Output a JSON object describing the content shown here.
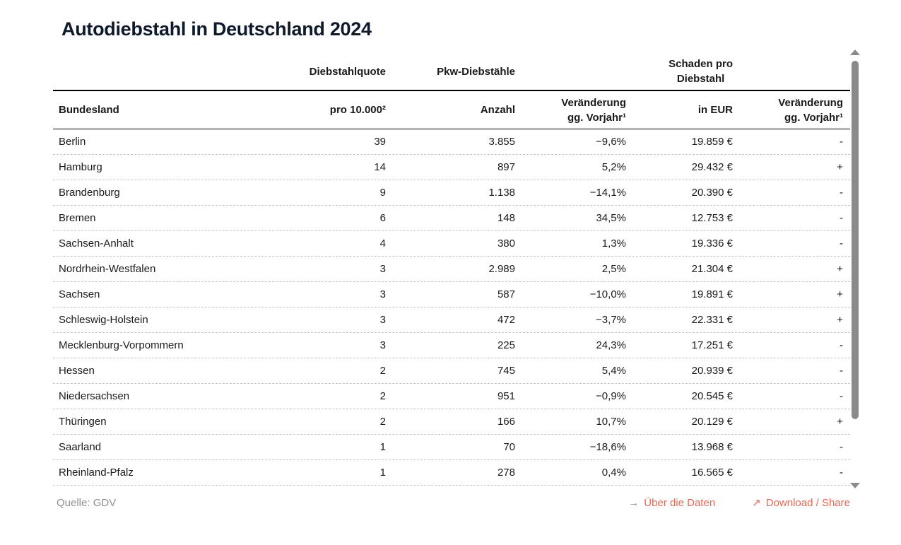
{
  "title": "Autodiebstahl in Deutschland 2024",
  "header": {
    "group1": "Diebstahlquote",
    "group2": "Pkw-Diebstähle",
    "group3_line1": "Schaden pro",
    "group3_line2": "Diebstahl",
    "col1": "Bundesland",
    "col2": "pro 10.000²",
    "col3": "Anzahl",
    "col4_line1": "Veränderung",
    "col4_line2": "gg. Vorjahr¹",
    "col5": "in EUR",
    "col6_line1": "Veränderung",
    "col6_line2": "gg. Vorjahr¹"
  },
  "chart_data": {
    "type": "table",
    "title": "Autodiebstahl in Deutschland 2024",
    "column_groups": [
      {
        "label": "Diebstahlquote",
        "columns": [
          "pro 10.000²"
        ]
      },
      {
        "label": "Pkw-Diebstähle",
        "columns": [
          "Anzahl",
          "Veränderung gg. Vorjahr¹"
        ]
      },
      {
        "label": "Schaden pro Diebstahl",
        "columns": [
          "in EUR",
          "Veränderung gg. Vorjahr¹"
        ]
      }
    ],
    "columns": [
      "Bundesland",
      "pro 10.000²",
      "Anzahl",
      "Veränderung gg. Vorjahr¹",
      "in EUR",
      "Veränderung gg. Vorjahr¹"
    ],
    "rows": [
      [
        "Berlin",
        "39",
        "3.855",
        "−9,6%",
        "19.859 €",
        "-"
      ],
      [
        "Hamburg",
        "14",
        "897",
        "5,2%",
        "29.432 €",
        "+"
      ],
      [
        "Brandenburg",
        "9",
        "1.138",
        "−14,1%",
        "20.390 €",
        "-"
      ],
      [
        "Bremen",
        "6",
        "148",
        "34,5%",
        "12.753 €",
        "-"
      ],
      [
        "Sachsen-Anhalt",
        "4",
        "380",
        "1,3%",
        "19.336 €",
        "-"
      ],
      [
        "Nordrhein-Westfalen",
        "3",
        "2.989",
        "2,5%",
        "21.304 €",
        "+"
      ],
      [
        "Sachsen",
        "3",
        "587",
        "−10,0%",
        "19.891 €",
        "+"
      ],
      [
        "Schleswig-Holstein",
        "3",
        "472",
        "−3,7%",
        "22.331 €",
        "+"
      ],
      [
        "Mecklenburg-Vorpommern",
        "3",
        "225",
        "24,3%",
        "17.251 €",
        "-"
      ],
      [
        "Hessen",
        "2",
        "745",
        "5,4%",
        "20.939 €",
        "-"
      ],
      [
        "Niedersachsen",
        "2",
        "951",
        "−0,9%",
        "20.545 €",
        "-"
      ],
      [
        "Thüringen",
        "2",
        "166",
        "10,7%",
        "20.129 €",
        "+"
      ],
      [
        "Saarland",
        "1",
        "70",
        "−18,6%",
        "13.968 €",
        "-"
      ],
      [
        "Rheinland-Pfalz",
        "1",
        "278",
        "0,4%",
        "16.565 €",
        "-"
      ]
    ]
  },
  "footer": {
    "source": "Quelle: GDV",
    "about_link": {
      "icon": "→",
      "label": "Über die Daten"
    },
    "download_link": {
      "icon": "↗",
      "label": "Download / Share"
    }
  },
  "colors": {
    "accent": "#f2654c",
    "title": "#0e1a2b",
    "text": "#1a1a1a",
    "muted_text": "#8f8f8f",
    "row_divider": "#c5c5c5",
    "header_rule": "#000000",
    "scrollbar": "#8a8a8a"
  }
}
